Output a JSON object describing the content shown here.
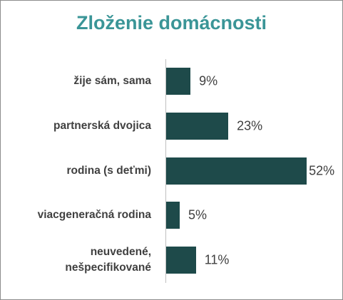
{
  "chart_data": {
    "type": "bar",
    "orientation": "horizontal",
    "title": "Zloženie domácnosti",
    "categories": [
      "žije sám, sama",
      "partnerská dvojica",
      "rodina (s deťmi)",
      "viacgeneračná  rodina",
      "neuvedené,\nnešpecifikované"
    ],
    "values": [
      9,
      23,
      52,
      5,
      11
    ],
    "value_labels": [
      "9%",
      "23%",
      "52%",
      "5%",
      "11%"
    ],
    "color": "#1e4a4a"
  }
}
